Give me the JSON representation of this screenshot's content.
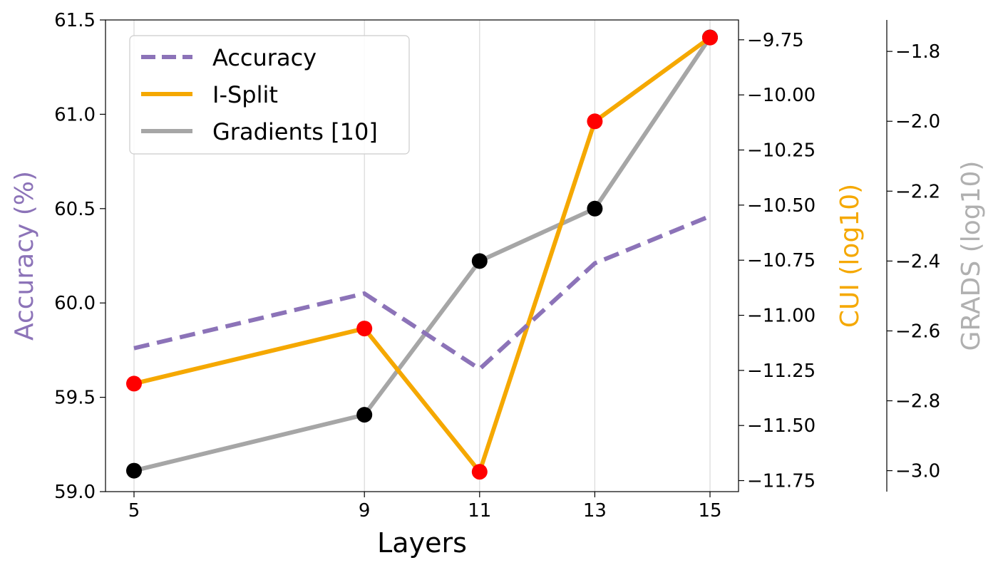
{
  "chart_data": {
    "type": "line",
    "x": [
      5,
      9,
      11,
      13,
      15
    ],
    "xticks": [
      "5",
      "9",
      "11",
      "13",
      "15"
    ],
    "xlabel": "Layers",
    "axes": {
      "left": {
        "label": "Accuracy (%)",
        "range": [
          59.0,
          61.5
        ],
        "ticks": [
          "59.0",
          "59.5",
          "60.0",
          "60.5",
          "61.0",
          "61.5"
        ],
        "color": "#8c73b8"
      },
      "right1": {
        "label": "CUI (log10)",
        "range": [
          -11.8,
          -9.66
        ],
        "ticks": [
          "−9.75",
          "−10.00",
          "−10.25",
          "−10.50",
          "−10.75",
          "−11.00",
          "−11.25",
          "−11.50",
          "−11.75"
        ],
        "color": "#f5a800"
      },
      "right2": {
        "label": "GRADS (log10)",
        "range": [
          -3.06,
          -1.71
        ],
        "ticks": [
          "−1.8",
          "−2.0",
          "−2.2",
          "−2.4",
          "−2.6",
          "−2.8",
          "−3.0"
        ],
        "color": "#b0b0b0"
      }
    },
    "series": [
      {
        "name": "Accuracy",
        "axis": "left",
        "style": "dashed",
        "color": "#8c73b8",
        "marker": "none",
        "values": [
          59.76,
          60.05,
          59.65,
          60.21,
          60.46
        ]
      },
      {
        "name": "I-Split",
        "axis": "right1",
        "style": "solid",
        "color": "#f5a800",
        "marker": "red-circle",
        "values": [
          -11.31,
          -11.06,
          -11.71,
          -10.12,
          -9.74
        ]
      },
      {
        "name": "Gradients [10]",
        "axis": "right2",
        "style": "solid",
        "color": "#a6a6a6",
        "marker": "black-circle",
        "values": [
          -3.0,
          -2.84,
          -2.4,
          -2.25,
          -1.76
        ]
      }
    ],
    "grid": "vertical",
    "legend": "top-left"
  }
}
